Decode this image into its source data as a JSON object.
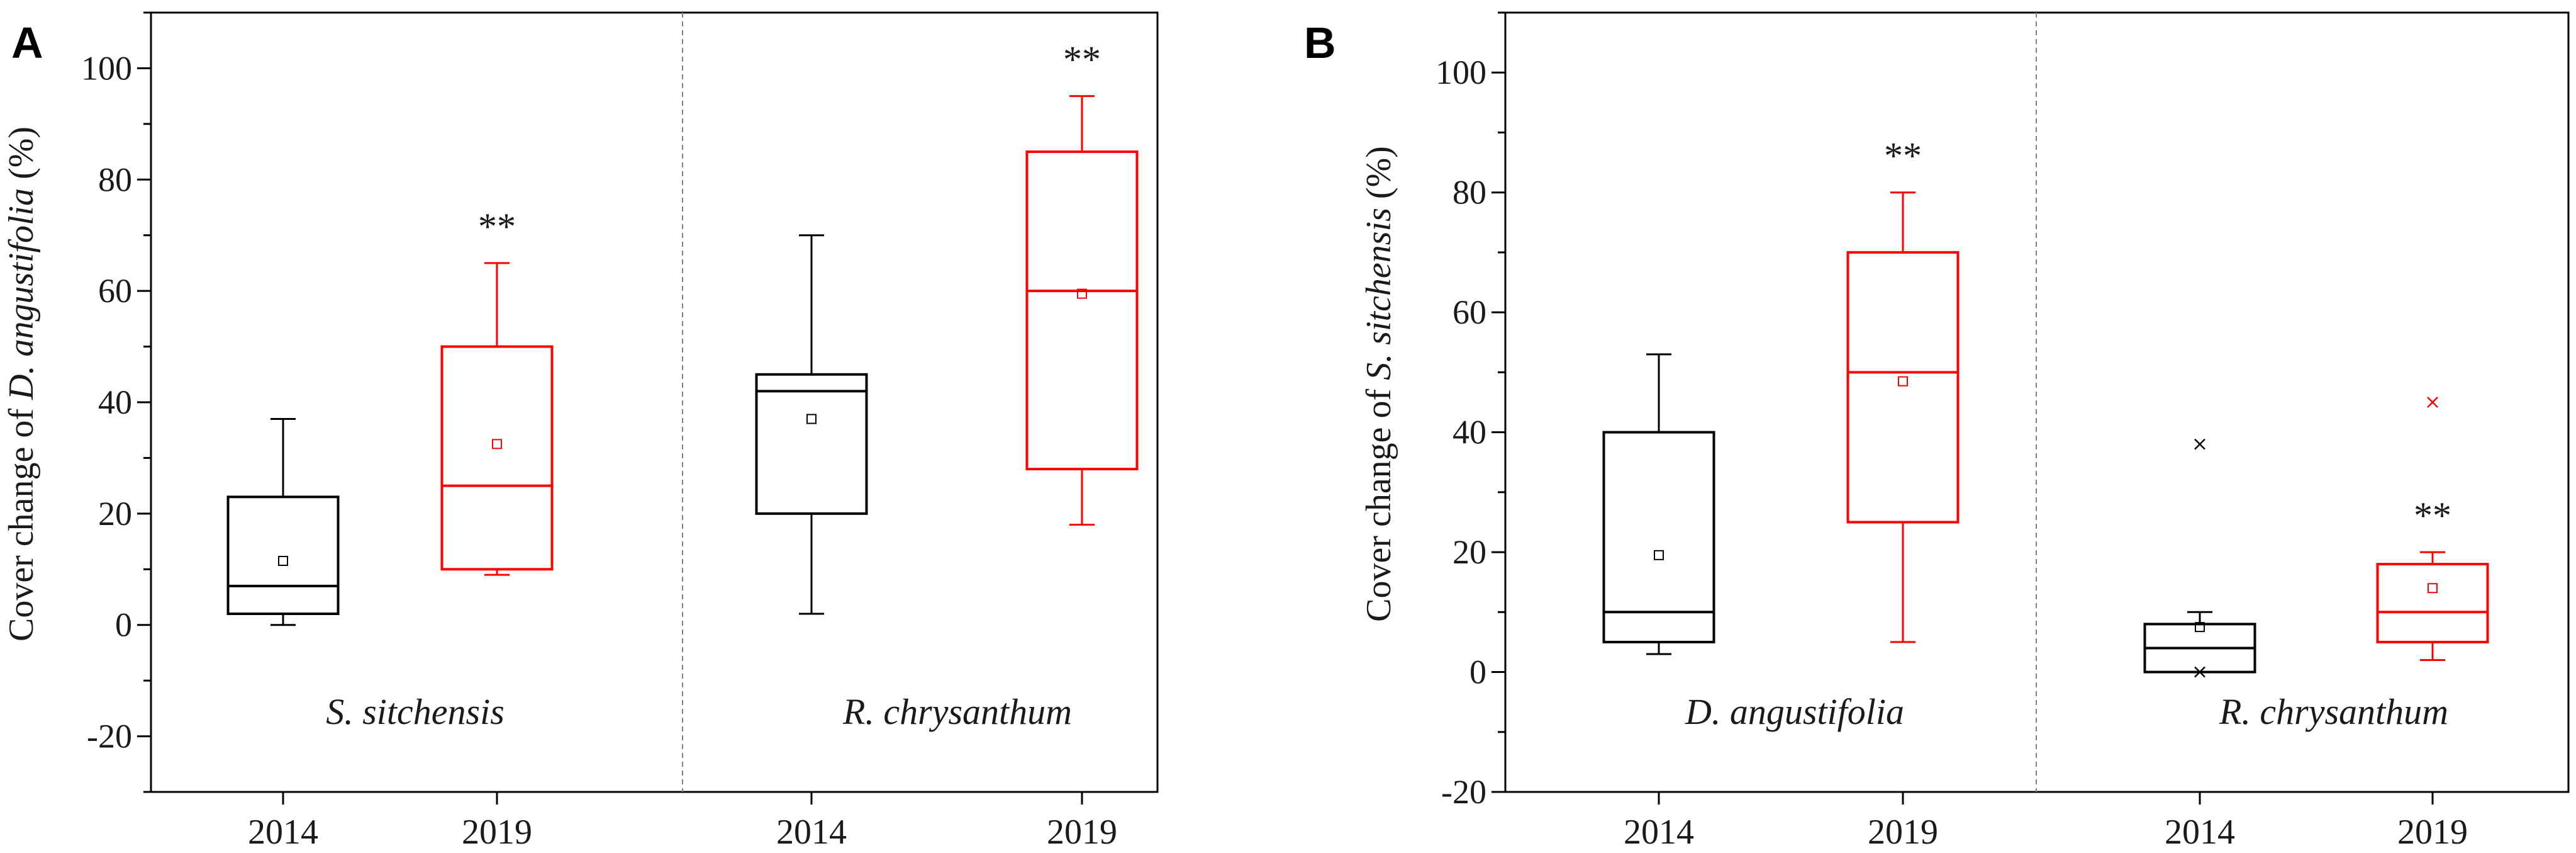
{
  "colors": {
    "year_2014": "#000000",
    "year_2019": "#ff0000",
    "axis": "#000000",
    "divider": "#808080"
  },
  "chart_data": [
    {
      "type": "box",
      "panel_label": "A",
      "ylabel_prefix": "Cover change of ",
      "ylabel_species": "D. angustifolia",
      "ylabel_suffix": " (%)",
      "ylim": [
        -30,
        110
      ],
      "yticks": [
        -20,
        0,
        20,
        40,
        60,
        80,
        100
      ],
      "groups": [
        {
          "name": "S. sitchensis",
          "boxes": [
            {
              "year": "2014",
              "color_key": "year_2014",
              "whisker_low": 0,
              "q1": 2,
              "median": 7,
              "q3": 23,
              "whisker_high": 37,
              "mean": 11.5,
              "outliers": [],
              "significance": ""
            },
            {
              "year": "2019",
              "color_key": "year_2019",
              "whisker_low": 9,
              "q1": 10,
              "median": 25,
              "q3": 50,
              "whisker_high": 65,
              "mean": 32.5,
              "outliers": [],
              "significance": "**"
            }
          ]
        },
        {
          "name": "R. chrysanthum",
          "boxes": [
            {
              "year": "2014",
              "color_key": "year_2014",
              "whisker_low": 2,
              "q1": 20,
              "median": 42,
              "q3": 45,
              "whisker_high": 70,
              "mean": 37,
              "outliers": [],
              "significance": ""
            },
            {
              "year": "2019",
              "color_key": "year_2019",
              "whisker_low": 18,
              "q1": 28,
              "median": 60,
              "q3": 85,
              "whisker_high": 95,
              "mean": 59.5,
              "outliers": [],
              "significance": "**"
            }
          ]
        }
      ]
    },
    {
      "type": "box",
      "panel_label": "B",
      "ylabel_prefix": "Cover change of ",
      "ylabel_species": "S. sitchensis",
      "ylabel_suffix": " (%)",
      "ylim": [
        -20,
        110
      ],
      "yticks": [
        -20,
        0,
        20,
        40,
        60,
        80,
        100
      ],
      "groups": [
        {
          "name": "D. angustifolia",
          "boxes": [
            {
              "year": "2014",
              "color_key": "year_2014",
              "whisker_low": 3,
              "q1": 5,
              "median": 10,
              "q3": 40,
              "whisker_high": 53,
              "mean": 19.5,
              "outliers": [],
              "significance": ""
            },
            {
              "year": "2019",
              "color_key": "year_2019",
              "whisker_low": 5,
              "q1": 25,
              "median": 50,
              "q3": 70,
              "whisker_high": 80,
              "mean": 48.5,
              "outliers": [],
              "significance": "**"
            }
          ]
        },
        {
          "name": "R. chrysanthum",
          "boxes": [
            {
              "year": "2014",
              "color_key": "year_2014",
              "whisker_low": 0,
              "q1": 0,
              "median": 4,
              "q3": 8,
              "whisker_high": 10,
              "mean": 7.5,
              "outliers": [
                0,
                38
              ],
              "significance": ""
            },
            {
              "year": "2019",
              "color_key": "year_2019",
              "whisker_low": 2,
              "q1": 5,
              "median": 10,
              "q3": 18,
              "whisker_high": 20,
              "mean": 14,
              "outliers": [
                45
              ],
              "significance": "**"
            }
          ]
        }
      ]
    }
  ]
}
